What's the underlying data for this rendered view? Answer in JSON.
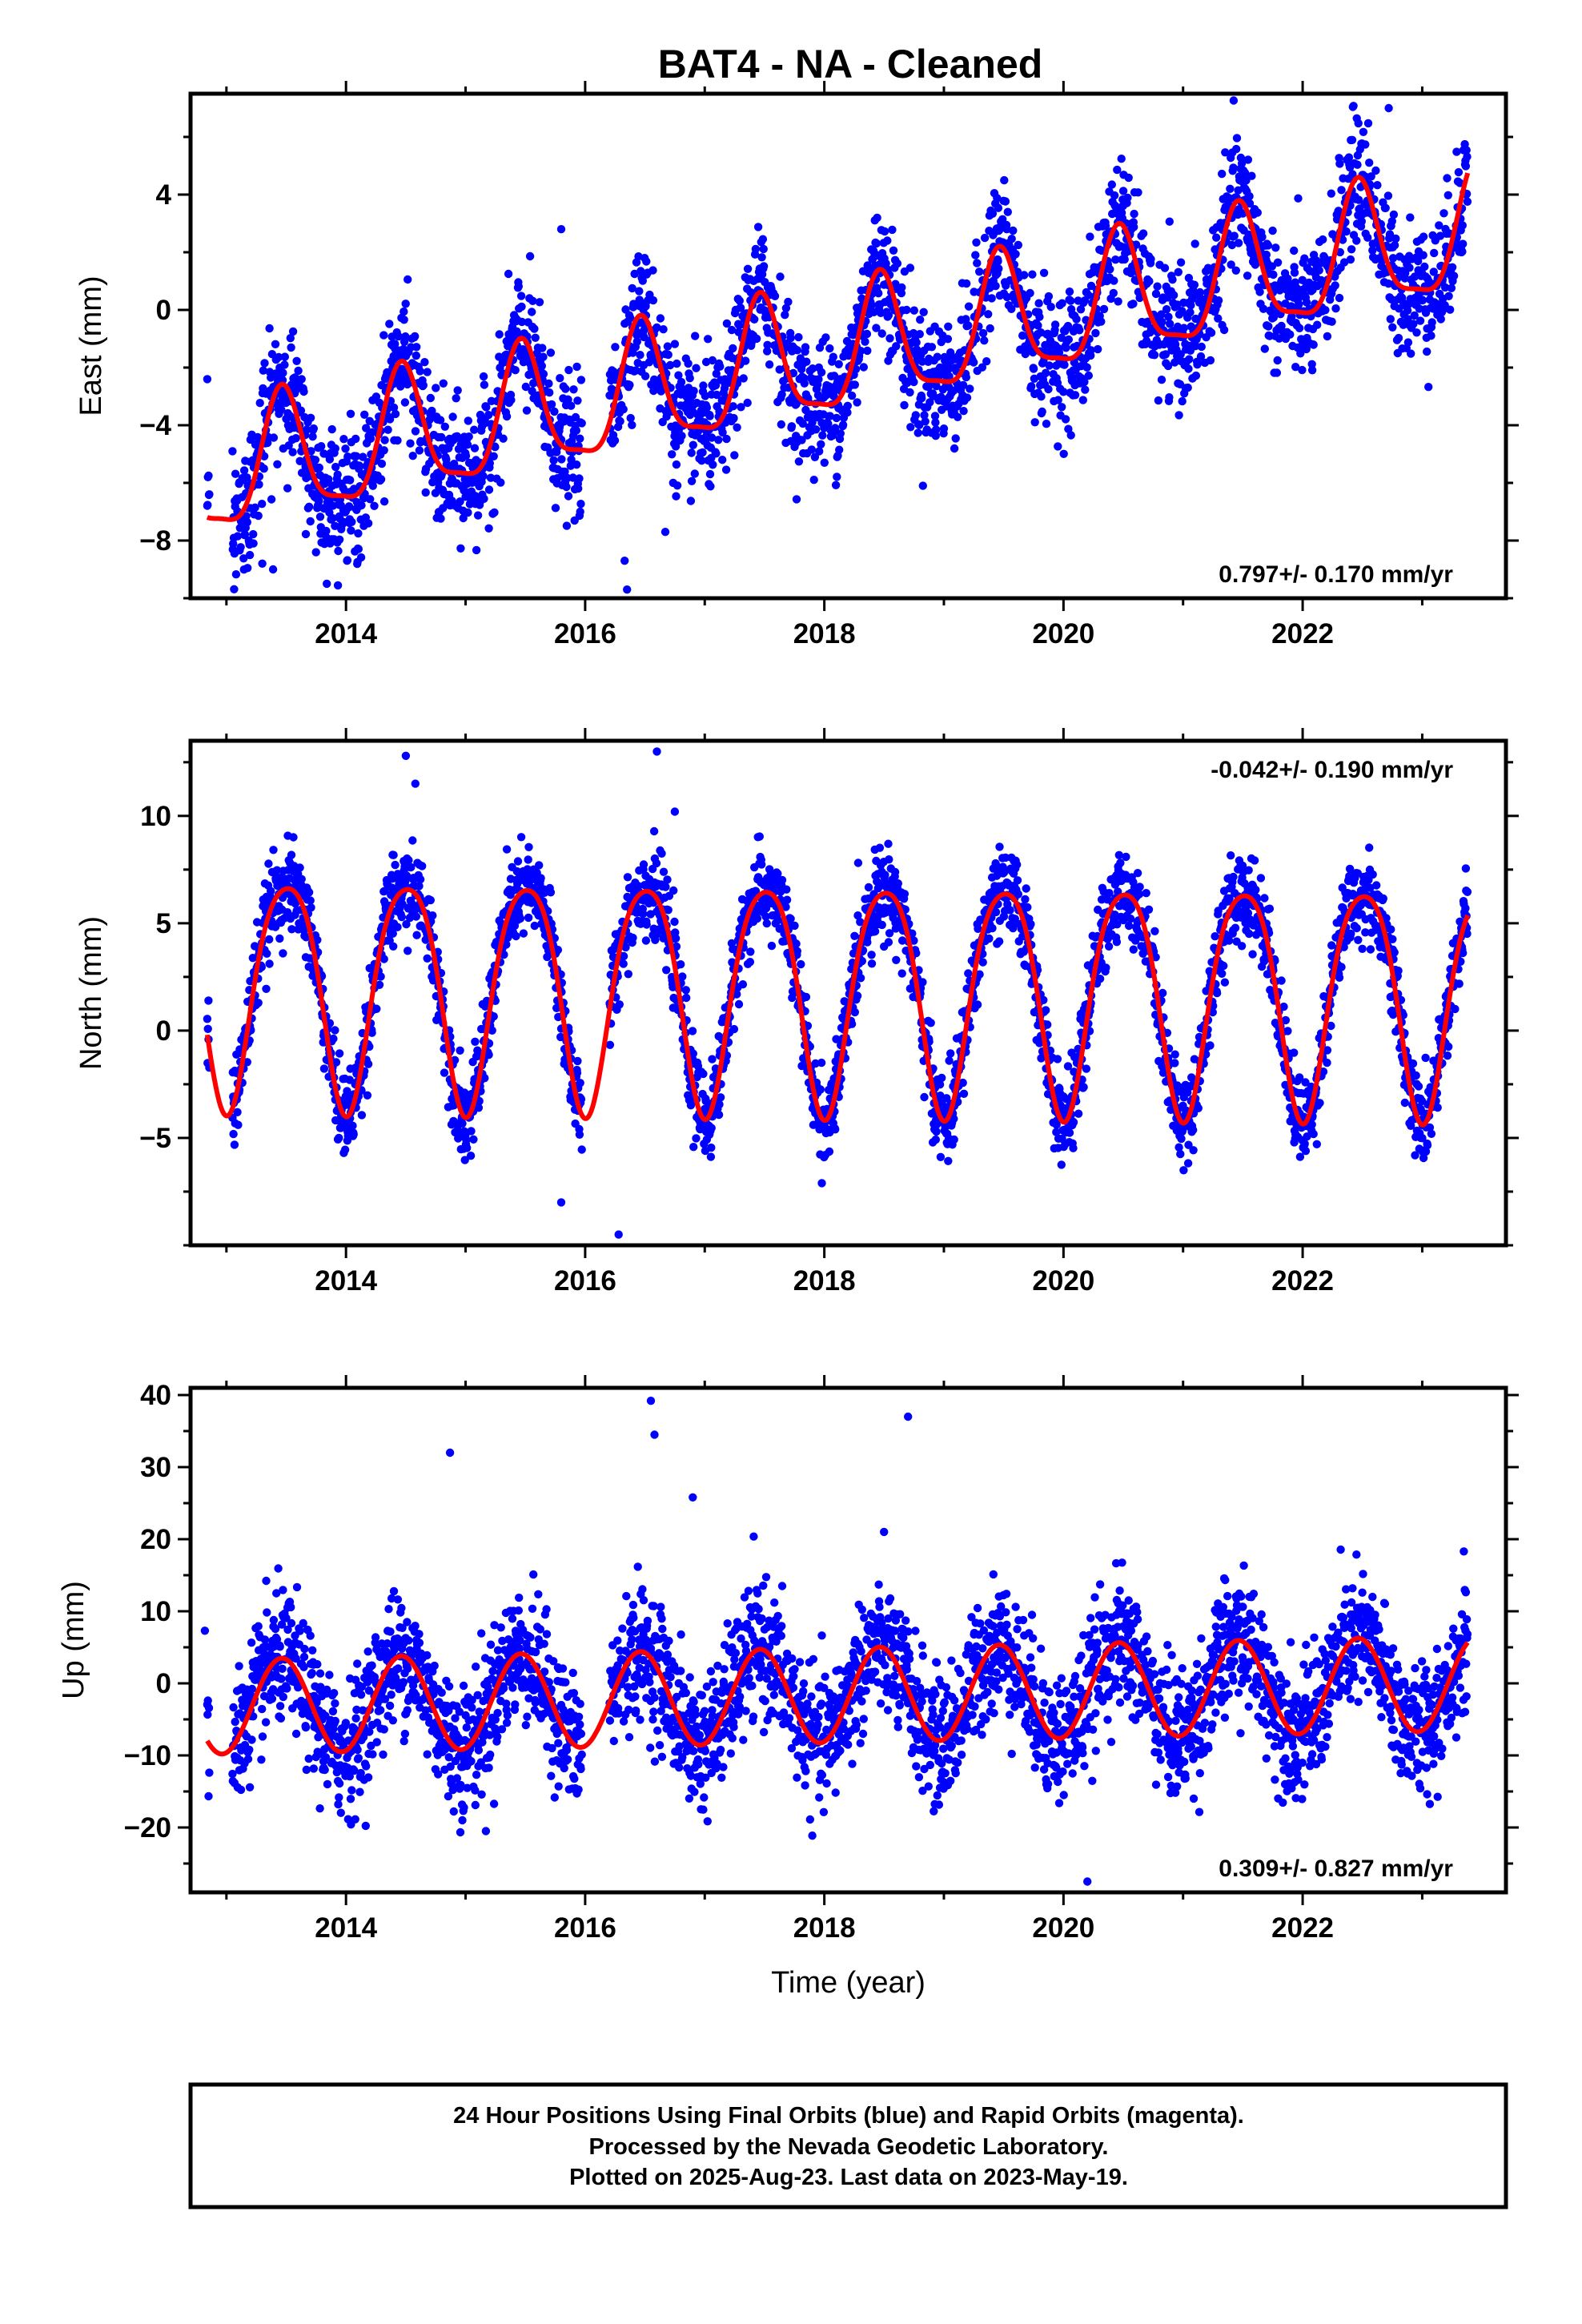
{
  "title": "BAT4  - NA - Cleaned",
  "footer": {
    "lines": [
      "24 Hour Positions Using Final Orbits (blue) and Rapid Orbits (magenta).",
      "Processed by the Nevada Geodetic Laboratory.",
      "Plotted on 2025-Aug-23. Last data on 2023-May-19."
    ]
  },
  "colors": {
    "data": "#0000ff",
    "model": "#ff0000",
    "frame": "#000000"
  },
  "chart_data": [
    {
      "type": "scatter",
      "ylabel": "East (mm)",
      "xlabel": "",
      "xlim": [
        2012.7,
        2023.7
      ],
      "ylim": [
        -10,
        7.5
      ],
      "xticks": [
        2014,
        2016,
        2018,
        2020,
        2022
      ],
      "yticks": [
        -8,
        -4,
        0,
        4
      ],
      "grid": false,
      "rate_label": "0.797+/- 0.170 mm/yr",
      "rate_position": "bottom-right",
      "model": {
        "offset": -3.27,
        "rate": 0.797,
        "annual_sin": 0.4,
        "annual_cos": -2.1,
        "semi_sin": -0.3,
        "semi_cos": 0.5
      },
      "noise": 1.1,
      "series": [
        {
          "name": "",
          "kind": "points",
          "x": [
            2012.84,
            2013.3,
            2013.39,
            2015.8,
            2016.33,
            2016.35,
            2016.67,
            2022.72
          ],
          "y": [
            -2.4,
            -8.8,
            -9.0,
            2.8,
            -8.7,
            -9.7,
            -7.7,
            7.0
          ]
        }
      ]
    },
    {
      "type": "scatter",
      "ylabel": "North (mm)",
      "xlabel": "",
      "xlim": [
        2012.7,
        2023.7
      ],
      "ylim": [
        -10,
        13.5
      ],
      "xticks": [
        2014,
        2016,
        2018,
        2020,
        2022
      ],
      "yticks": [
        -5,
        0,
        5,
        10
      ],
      "grid": false,
      "rate_label": "-0.042+/- 0.190 mm/yr",
      "rate_position": "top-right",
      "model": {
        "offset": 2.0,
        "rate": -0.042,
        "annual_sin": -0.2,
        "annual_cos": -5.3,
        "semi_sin": 0.0,
        "semi_cos": -0.8
      },
      "noise": 1.0,
      "series": [
        {
          "name": "",
          "kind": "points",
          "x": [
            2012.85,
            2014.5,
            2014.58,
            2015.8,
            2016.28,
            2016.6,
            2016.75
          ],
          "y": [
            1.4,
            12.8,
            11.5,
            -8.0,
            -9.5,
            13.0,
            10.2
          ]
        }
      ]
    },
    {
      "type": "scatter",
      "ylabel": "Up (mm)",
      "xlabel": "Time (year)",
      "xlim": [
        2012.7,
        2023.7
      ],
      "ylim": [
        -29,
        41
      ],
      "xticks": [
        2014,
        2016,
        2018,
        2020,
        2022
      ],
      "yticks": [
        -20,
        -10,
        0,
        10,
        20,
        30,
        40
      ],
      "grid": false,
      "rate_label": "0.309+/- 0.827 mm/yr",
      "rate_position": "bottom-right",
      "model": {
        "offset": -2.3,
        "rate": 0.309,
        "annual_sin": 1.5,
        "annual_cos": -6.4,
        "semi_sin": 0.0,
        "semi_cos": 0.0
      },
      "noise": 4.5,
      "series": [
        {
          "name": "",
          "kind": "points",
          "x": [
            2012.82,
            2014.87,
            2015.17,
            2016.55,
            2016.58,
            2016.9,
            2018.7,
            2020.2
          ],
          "y": [
            7.3,
            32.0,
            -20.5,
            39.2,
            34.5,
            25.8,
            37.0,
            -27.5
          ]
        }
      ]
    }
  ]
}
